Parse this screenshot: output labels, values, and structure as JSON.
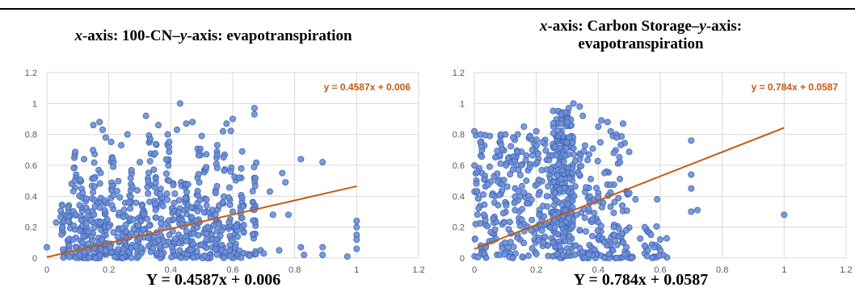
{
  "chart_data": [
    {
      "type": "scatter",
      "title_italic_x": "x",
      "title_part1": "-axis: 100-CN–",
      "title_italic_y": "y",
      "title_part2": "-axis: evapotranspiration",
      "xlim": [
        0,
        1.2
      ],
      "ylim": [
        0,
        1.2
      ],
      "x_ticks": [
        "0",
        "0.2",
        "0.4",
        "0.6",
        "0.8",
        "1",
        "1.2"
      ],
      "y_ticks": [
        "0",
        "0.2",
        "0.4",
        "0.6",
        "0.8",
        "1",
        "1.2"
      ],
      "grid": true,
      "trendline": {
        "slope": 0.4587,
        "intercept": 0.006,
        "label": "y = 0.4587x + 0.006",
        "color": "#c55a11"
      },
      "formula": "Y = 0.4587x + 0.006",
      "marker_color": "#4472c4",
      "x_columns": [
        0.05,
        0.07,
        0.09,
        0.11,
        0.13,
        0.15,
        0.17,
        0.19,
        0.21,
        0.23,
        0.25,
        0.27,
        0.29,
        0.31,
        0.33,
        0.35,
        0.37,
        0.39,
        0.41,
        0.43,
        0.45,
        0.47,
        0.49,
        0.51,
        0.53,
        0.55,
        0.57,
        0.59,
        0.61,
        0.63,
        0.67
      ],
      "points": [
        [
          0.0,
          0.07
        ],
        [
          0.03,
          0.23
        ],
        [
          0.05,
          0.2
        ],
        [
          0.08,
          0.48
        ],
        [
          0.09,
          0.5
        ],
        [
          0.12,
          0.64
        ],
        [
          0.15,
          0.86
        ],
        [
          0.17,
          0.88
        ],
        [
          0.18,
          0.83
        ],
        [
          0.19,
          0.78
        ],
        [
          0.24,
          0.73
        ],
        [
          0.26,
          0.8
        ],
        [
          0.3,
          0.62
        ],
        [
          0.32,
          0.92
        ],
        [
          0.36,
          0.86
        ],
        [
          0.39,
          0.8
        ],
        [
          0.42,
          0.83
        ],
        [
          0.43,
          1.0
        ],
        [
          0.45,
          0.87
        ],
        [
          0.47,
          0.88
        ],
        [
          0.5,
          0.79
        ],
        [
          0.55,
          0.73
        ],
        [
          0.58,
          0.87
        ],
        [
          0.6,
          0.9
        ],
        [
          0.62,
          0.52
        ],
        [
          0.63,
          0.39
        ],
        [
          0.67,
          0.97
        ],
        [
          0.67,
          0.93
        ],
        [
          0.72,
          0.43
        ],
        [
          0.73,
          0.28
        ],
        [
          0.75,
          0.05
        ],
        [
          0.76,
          0.55
        ],
        [
          0.77,
          0.49
        ],
        [
          0.78,
          0.28
        ],
        [
          0.82,
          0.64
        ],
        [
          0.82,
          0.07
        ],
        [
          0.83,
          0.02
        ],
        [
          0.89,
          0.62
        ],
        [
          0.89,
          0.07
        ],
        [
          0.89,
          0.02
        ],
        [
          0.97,
          0.01
        ],
        [
          1.0,
          0.24
        ],
        [
          1.0,
          0.2
        ],
        [
          1.0,
          0.15
        ],
        [
          1.0,
          0.12
        ],
        [
          1.0,
          0.06
        ],
        [
          0.69,
          0.05
        ],
        [
          0.7,
          0.03
        ],
        [
          0.6,
          0.3
        ],
        [
          0.59,
          0.05
        ]
      ]
    },
    {
      "type": "scatter",
      "title_italic_x": "x",
      "title_part1": "-axis: Carbon Storage–",
      "title_italic_y": "y",
      "title_part2": "-axis:",
      "title_line2": "evapotranspiration",
      "xlim": [
        0,
        1.2
      ],
      "ylim": [
        0,
        1.2
      ],
      "x_ticks": [
        "0",
        "0.2",
        "0.4",
        "0.6",
        "0.8",
        "1",
        "1.2"
      ],
      "y_ticks": [
        "0",
        "0.2",
        "0.4",
        "0.6",
        "0.8",
        "1",
        "1.2"
      ],
      "grid": true,
      "trendline": {
        "slope": 0.784,
        "intercept": 0.0587,
        "label": "y = 0.784x + 0.0587",
        "color": "#c55a11"
      },
      "formula": "Y = 0.784x + 0.0587",
      "marker_color": "#4472c4",
      "points": [
        [
          0.0,
          0.82
        ],
        [
          0.02,
          0.8
        ],
        [
          0.05,
          0.79
        ],
        [
          0.1,
          0.8
        ],
        [
          0.14,
          0.8
        ],
        [
          0.16,
          0.85
        ],
        [
          0.18,
          0.79
        ],
        [
          0.2,
          0.82
        ],
        [
          0.22,
          0.75
        ],
        [
          0.26,
          0.72
        ],
        [
          0.27,
          0.95
        ],
        [
          0.28,
          0.93
        ],
        [
          0.3,
          0.88
        ],
        [
          0.32,
          1.0
        ],
        [
          0.34,
          0.98
        ],
        [
          0.35,
          0.92
        ],
        [
          0.4,
          0.85
        ],
        [
          0.41,
          0.89
        ],
        [
          0.43,
          0.88
        ],
        [
          0.44,
          0.82
        ],
        [
          0.46,
          0.78
        ],
        [
          0.48,
          0.87
        ],
        [
          0.45,
          0.68
        ],
        [
          0.47,
          0.62
        ],
        [
          0.42,
          0.55
        ],
        [
          0.5,
          0.42
        ],
        [
          0.52,
          0.38
        ],
        [
          0.55,
          0.2
        ],
        [
          0.57,
          0.15
        ],
        [
          0.59,
          0.38
        ],
        [
          0.6,
          0.12
        ],
        [
          0.56,
          0.05
        ],
        [
          0.55,
          0.08
        ],
        [
          0.58,
          0.07
        ],
        [
          0.6,
          0.05
        ],
        [
          0.45,
          0.2
        ],
        [
          0.48,
          0.1
        ],
        [
          0.38,
          0.25
        ],
        [
          0.33,
          0.28
        ],
        [
          0.34,
          0.18
        ],
        [
          0.7,
          0.76
        ],
        [
          0.7,
          0.54
        ],
        [
          0.7,
          0.45
        ],
        [
          0.7,
          0.3
        ],
        [
          0.72,
          0.31
        ],
        [
          1.0,
          0.28
        ]
      ]
    }
  ]
}
